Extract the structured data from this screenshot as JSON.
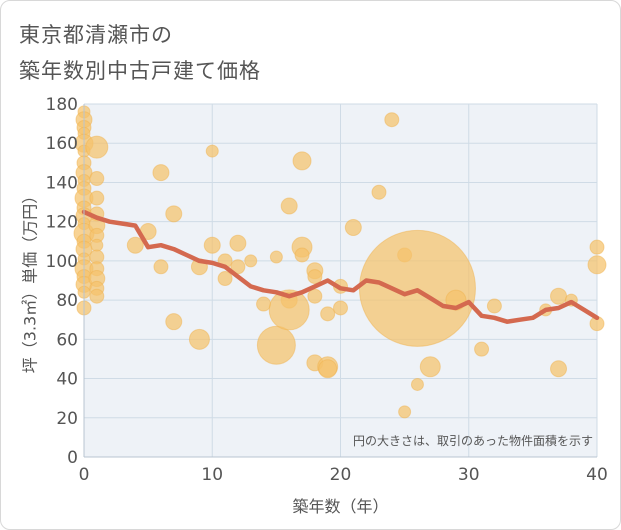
{
  "title": {
    "line1": "東京都清瀬市の",
    "line2": "築年数別中古戸建て価格"
  },
  "chart_data": {
    "type": "scatter",
    "title": "東京都清瀬市の築年数別中古戸建て価格",
    "xlabel": "築年数（年）",
    "ylabel": "坪（3.3㎡）単価（万円）",
    "xlim": [
      0,
      40
    ],
    "ylim": [
      0,
      180
    ],
    "x_ticks": [
      0,
      10,
      20,
      30,
      40
    ],
    "y_ticks": [
      0,
      20,
      40,
      60,
      80,
      100,
      120,
      140,
      160,
      180
    ],
    "grid": true,
    "note": "円の大きさは、取引のあった物件面積を示す",
    "colors": {
      "bubble": "#f5c26b",
      "line": "#d4694f",
      "grid": "#cfdbe6",
      "plot_bg": "#eef2f7"
    },
    "points": [
      {
        "x": 0,
        "y": 176,
        "s": 6
      },
      {
        "x": 0,
        "y": 172,
        "s": 8
      },
      {
        "x": 0,
        "y": 168,
        "s": 7
      },
      {
        "x": 0,
        "y": 165,
        "s": 6
      },
      {
        "x": 0,
        "y": 160,
        "s": 9
      },
      {
        "x": 0,
        "y": 156,
        "s": 6
      },
      {
        "x": 0,
        "y": 150,
        "s": 7
      },
      {
        "x": 0,
        "y": 145,
        "s": 8
      },
      {
        "x": 0,
        "y": 141,
        "s": 6
      },
      {
        "x": 0,
        "y": 137,
        "s": 7
      },
      {
        "x": 0,
        "y": 132,
        "s": 9
      },
      {
        "x": 0,
        "y": 127,
        "s": 7
      },
      {
        "x": 0,
        "y": 123,
        "s": 8
      },
      {
        "x": 0,
        "y": 119,
        "s": 6
      },
      {
        "x": 0,
        "y": 114,
        "s": 10
      },
      {
        "x": 0,
        "y": 110,
        "s": 7
      },
      {
        "x": 0,
        "y": 106,
        "s": 8
      },
      {
        "x": 0,
        "y": 101,
        "s": 6
      },
      {
        "x": 0,
        "y": 96,
        "s": 9
      },
      {
        "x": 0,
        "y": 92,
        "s": 7
      },
      {
        "x": 0,
        "y": 88,
        "s": 8
      },
      {
        "x": 0,
        "y": 84,
        "s": 6
      },
      {
        "x": 0,
        "y": 76,
        "s": 7
      },
      {
        "x": 1,
        "y": 158,
        "s": 11
      },
      {
        "x": 1,
        "y": 142,
        "s": 7
      },
      {
        "x": 1,
        "y": 132,
        "s": 7
      },
      {
        "x": 1,
        "y": 124,
        "s": 7
      },
      {
        "x": 1,
        "y": 118,
        "s": 8
      },
      {
        "x": 1,
        "y": 113,
        "s": 7
      },
      {
        "x": 1,
        "y": 108,
        "s": 6
      },
      {
        "x": 1,
        "y": 102,
        "s": 7
      },
      {
        "x": 1,
        "y": 96,
        "s": 7
      },
      {
        "x": 1,
        "y": 91,
        "s": 8
      },
      {
        "x": 1,
        "y": 86,
        "s": 7
      },
      {
        "x": 1,
        "y": 82,
        "s": 7
      },
      {
        "x": 4,
        "y": 108,
        "s": 8
      },
      {
        "x": 5,
        "y": 115,
        "s": 8
      },
      {
        "x": 6,
        "y": 145,
        "s": 8
      },
      {
        "x": 6,
        "y": 97,
        "s": 7
      },
      {
        "x": 7,
        "y": 124,
        "s": 8
      },
      {
        "x": 7,
        "y": 69,
        "s": 8
      },
      {
        "x": 9,
        "y": 97,
        "s": 8
      },
      {
        "x": 9,
        "y": 60,
        "s": 10
      },
      {
        "x": 10,
        "y": 156,
        "s": 6
      },
      {
        "x": 10,
        "y": 108,
        "s": 8
      },
      {
        "x": 11,
        "y": 100,
        "s": 7
      },
      {
        "x": 11,
        "y": 91,
        "s": 7
      },
      {
        "x": 12,
        "y": 109,
        "s": 8
      },
      {
        "x": 12,
        "y": 97,
        "s": 7
      },
      {
        "x": 13,
        "y": 100,
        "s": 6
      },
      {
        "x": 14,
        "y": 78,
        "s": 7
      },
      {
        "x": 15,
        "y": 102,
        "s": 6
      },
      {
        "x": 15,
        "y": 57,
        "s": 19
      },
      {
        "x": 16,
        "y": 128,
        "s": 8
      },
      {
        "x": 16,
        "y": 80,
        "s": 8
      },
      {
        "x": 16,
        "y": 75,
        "s": 20
      },
      {
        "x": 17,
        "y": 151,
        "s": 9
      },
      {
        "x": 17,
        "y": 107,
        "s": 10
      },
      {
        "x": 17,
        "y": 103,
        "s": 7
      },
      {
        "x": 18,
        "y": 95,
        "s": 8
      },
      {
        "x": 18,
        "y": 92,
        "s": 7
      },
      {
        "x": 18,
        "y": 82,
        "s": 7
      },
      {
        "x": 18,
        "y": 48,
        "s": 8
      },
      {
        "x": 19,
        "y": 73,
        "s": 7
      },
      {
        "x": 19,
        "y": 46,
        "s": 10
      },
      {
        "x": 19,
        "y": 45,
        "s": 9
      },
      {
        "x": 20,
        "y": 87,
        "s": 7
      },
      {
        "x": 20,
        "y": 76,
        "s": 7
      },
      {
        "x": 21,
        "y": 117,
        "s": 8
      },
      {
        "x": 23,
        "y": 135,
        "s": 7
      },
      {
        "x": 24,
        "y": 172,
        "s": 7
      },
      {
        "x": 25,
        "y": 103,
        "s": 7
      },
      {
        "x": 25,
        "y": 23,
        "s": 6
      },
      {
        "x": 26,
        "y": 86,
        "s": 58
      },
      {
        "x": 26,
        "y": 37,
        "s": 6
      },
      {
        "x": 27,
        "y": 46,
        "s": 10
      },
      {
        "x": 29,
        "y": 80,
        "s": 10
      },
      {
        "x": 31,
        "y": 55,
        "s": 7
      },
      {
        "x": 32,
        "y": 77,
        "s": 7
      },
      {
        "x": 36,
        "y": 75,
        "s": 6
      },
      {
        "x": 37,
        "y": 82,
        "s": 8
      },
      {
        "x": 37,
        "y": 45,
        "s": 8
      },
      {
        "x": 38,
        "y": 80,
        "s": 6
      },
      {
        "x": 40,
        "y": 107,
        "s": 7
      },
      {
        "x": 40,
        "y": 98,
        "s": 9
      },
      {
        "x": 40,
        "y": 68,
        "s": 7
      }
    ],
    "trend_line": {
      "x": [
        0,
        1,
        2,
        3,
        4,
        5,
        6,
        7,
        8,
        9,
        10,
        11,
        12,
        13,
        14,
        15,
        16,
        17,
        18,
        19,
        20,
        21,
        22,
        23,
        24,
        25,
        26,
        27,
        28,
        29,
        30,
        31,
        32,
        33,
        34,
        35,
        36,
        37,
        38,
        39,
        40
      ],
      "y": [
        125,
        122,
        120,
        119,
        118,
        107,
        108,
        106,
        103,
        100,
        99,
        97,
        92,
        87,
        85,
        84,
        82,
        84,
        87,
        90,
        86,
        85,
        90,
        89,
        86,
        83,
        85,
        81,
        77,
        76,
        79,
        72,
        71,
        69,
        70,
        71,
        75,
        76,
        79,
        75,
        71
      ]
    }
  }
}
